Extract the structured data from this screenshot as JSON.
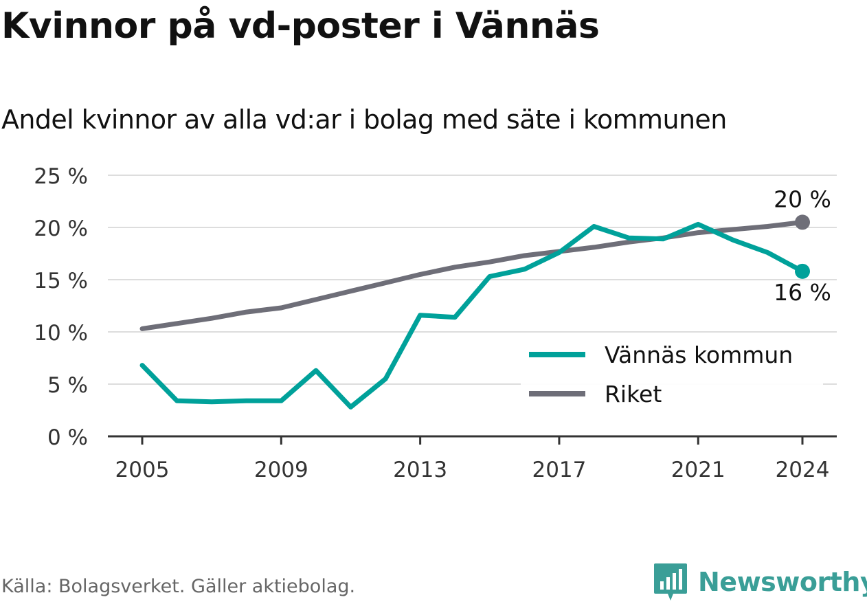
{
  "title": "Kvinnor på vd-poster i Vännäs",
  "subtitle": "Andel kvinnor av alla vd:ar i bolag med säte i kommunen",
  "source": "Källa: Bolagsverket. Gäller aktiebolag.",
  "brand": {
    "name": "Newsworthy",
    "icon": "newsworthy-logo-icon"
  },
  "colors": {
    "vannas": "#00a19a",
    "riket": "#6e6e78",
    "grid": "#dddddd",
    "axis": "#333333"
  },
  "chart_data": {
    "type": "line",
    "x": [
      2005,
      2006,
      2007,
      2008,
      2009,
      2010,
      2011,
      2012,
      2013,
      2014,
      2015,
      2016,
      2017,
      2018,
      2019,
      2020,
      2021,
      2022,
      2023,
      2024
    ],
    "xticks": [
      2005,
      2009,
      2013,
      2017,
      2021,
      2024
    ],
    "xtick_labels": [
      "2005",
      "2009",
      "2013",
      "2017",
      "2021",
      "2024"
    ],
    "yticks": [
      0,
      5,
      10,
      15,
      20,
      25
    ],
    "ytick_labels": [
      "0 %",
      "5 %",
      "10 %",
      "15 %",
      "20 %",
      "25 %"
    ],
    "ylim": [
      0,
      25
    ],
    "xlim": [
      2004,
      2025
    ],
    "grid": true,
    "legend_position": "bottom-right",
    "series": [
      {
        "name": "Vännäs kommun",
        "color": "#00a19a",
        "values": [
          6.8,
          3.4,
          3.3,
          3.4,
          3.4,
          6.3,
          2.8,
          5.5,
          11.6,
          11.4,
          15.3,
          16.0,
          17.6,
          20.1,
          19.0,
          18.9,
          20.3,
          18.8,
          17.6,
          15.8
        ],
        "end_label": "16 %"
      },
      {
        "name": "Riket",
        "color": "#6e6e78",
        "values": [
          10.3,
          10.8,
          11.3,
          11.9,
          12.3,
          13.1,
          13.9,
          14.7,
          15.5,
          16.2,
          16.7,
          17.3,
          17.7,
          18.1,
          18.6,
          19.0,
          19.5,
          19.8,
          20.1,
          20.5
        ],
        "end_label": "20 %"
      }
    ]
  }
}
